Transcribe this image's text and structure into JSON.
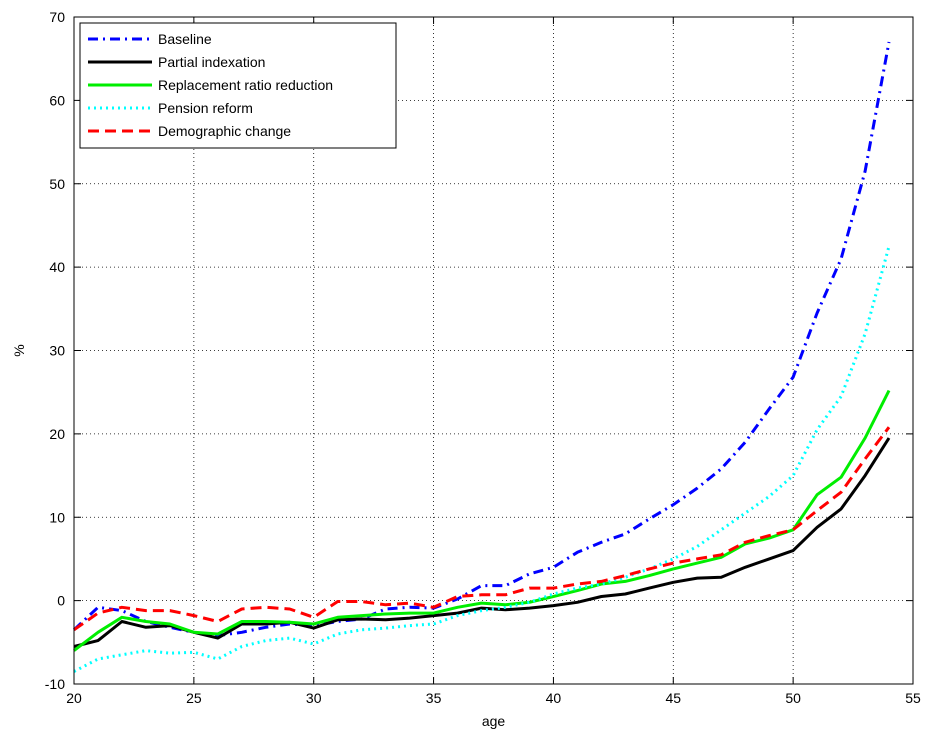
{
  "chart_data": {
    "type": "line",
    "title": "",
    "xlabel": "age",
    "ylabel": "%",
    "xlim": [
      20,
      55
    ],
    "ylim": [
      -10,
      70
    ],
    "xticks": [
      20,
      25,
      30,
      35,
      40,
      45,
      50,
      55
    ],
    "yticks": [
      -10,
      0,
      10,
      20,
      30,
      40,
      50,
      60,
      70
    ],
    "grid": true,
    "legend_position": "top-left",
    "x": [
      20,
      21,
      22,
      23,
      24,
      25,
      26,
      27,
      28,
      29,
      30,
      31,
      32,
      33,
      34,
      35,
      36,
      37,
      38,
      39,
      40,
      41,
      42,
      43,
      44,
      45,
      46,
      47,
      48,
      49,
      50,
      51,
      52,
      53,
      54
    ],
    "series": [
      {
        "name": "Baseline",
        "color": "#0000ff",
        "dash": "dashdot",
        "values": [
          -3.5,
          -0.8,
          -1.2,
          -2.5,
          -3.2,
          -3.8,
          -4.2,
          -3.8,
          -3.2,
          -2.8,
          -3.0,
          -2.5,
          -2.2,
          -1.0,
          -0.8,
          -0.9,
          0.2,
          1.8,
          1.8,
          3.2,
          4.0,
          5.8,
          7.0,
          8.0,
          9.8,
          11.5,
          13.5,
          15.8,
          19.0,
          23.0,
          26.8,
          34.5,
          41.0,
          51.5,
          67.0
        ]
      },
      {
        "name": "Partial indexation",
        "color": "#000000",
        "dash": "solid",
        "values": [
          -5.5,
          -4.8,
          -2.5,
          -3.2,
          -3.0,
          -3.8,
          -4.5,
          -2.8,
          -2.8,
          -2.6,
          -3.3,
          -2.3,
          -2.2,
          -2.3,
          -2.1,
          -1.8,
          -1.5,
          -0.9,
          -1.1,
          -0.9,
          -0.6,
          -0.2,
          0.5,
          0.8,
          1.5,
          2.2,
          2.7,
          2.8,
          4.0,
          5.0,
          6.0,
          8.8,
          11.0,
          15.0,
          19.5
        ]
      },
      {
        "name": "Replacement ratio reduction",
        "color": "#00ee00",
        "dash": "solid",
        "values": [
          -6.0,
          -3.8,
          -2.0,
          -2.5,
          -2.8,
          -3.8,
          -4.0,
          -2.5,
          -2.5,
          -2.6,
          -2.8,
          -2.0,
          -1.8,
          -1.6,
          -1.5,
          -1.5,
          -0.8,
          -0.3,
          -0.5,
          -0.2,
          0.5,
          1.2,
          2.0,
          2.3,
          3.0,
          3.8,
          4.5,
          5.2,
          6.8,
          7.5,
          8.5,
          12.7,
          14.8,
          19.5,
          25.2
        ]
      },
      {
        "name": "Pension reform",
        "color": "#00ffff",
        "dash": "dotted",
        "values": [
          -8.5,
          -7.0,
          -6.5,
          -6.0,
          -6.3,
          -6.2,
          -7.0,
          -5.5,
          -4.8,
          -4.5,
          -5.2,
          -4.0,
          -3.5,
          -3.3,
          -3.0,
          -2.8,
          -1.8,
          -1.2,
          -0.8,
          -0.2,
          0.8,
          1.5,
          2.0,
          2.8,
          3.8,
          5.0,
          6.5,
          8.5,
          10.5,
          12.5,
          15.0,
          20.5,
          24.5,
          32.0,
          42.5
        ]
      },
      {
        "name": "Demographic change",
        "color": "#ff0000",
        "dash": "dashed",
        "values": [
          -3.5,
          -1.5,
          -0.8,
          -1.2,
          -1.2,
          -1.8,
          -2.5,
          -1.0,
          -0.8,
          -1.0,
          -2.0,
          -0.1,
          -0.1,
          -0.5,
          -0.3,
          -0.8,
          0.5,
          0.7,
          0.7,
          1.5,
          1.5,
          2.0,
          2.3,
          3.0,
          3.8,
          4.5,
          5.0,
          5.5,
          7.0,
          7.8,
          8.5,
          10.8,
          13.0,
          17.0,
          20.8
        ]
      }
    ]
  }
}
